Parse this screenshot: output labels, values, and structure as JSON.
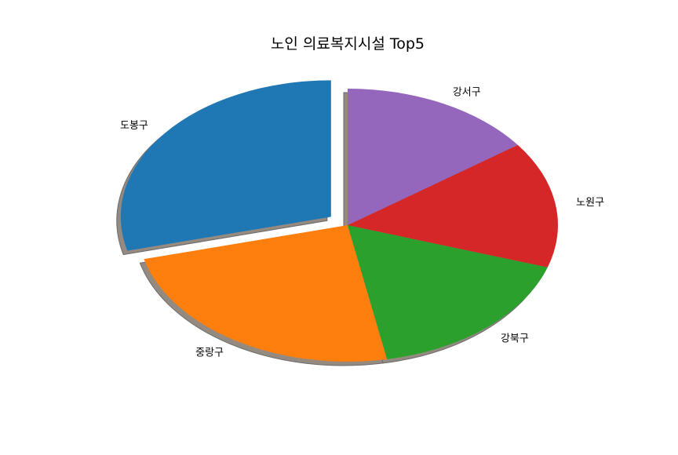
{
  "chart_data": {
    "type": "pie",
    "title": "노인 의료복지시설 Top5",
    "categories": [
      "도봉구",
      "중랑구",
      "강북구",
      "노원구",
      "강서구"
    ],
    "values": [
      29,
      24,
      17,
      15,
      15
    ],
    "colors": [
      "#1f77b4",
      "#ff7f0e",
      "#2ca02c",
      "#d62728",
      "#9467bd"
    ],
    "start_angle_deg": 90,
    "direction": "counterclockwise",
    "exploded": [
      "도봉구"
    ],
    "shadow": true
  }
}
